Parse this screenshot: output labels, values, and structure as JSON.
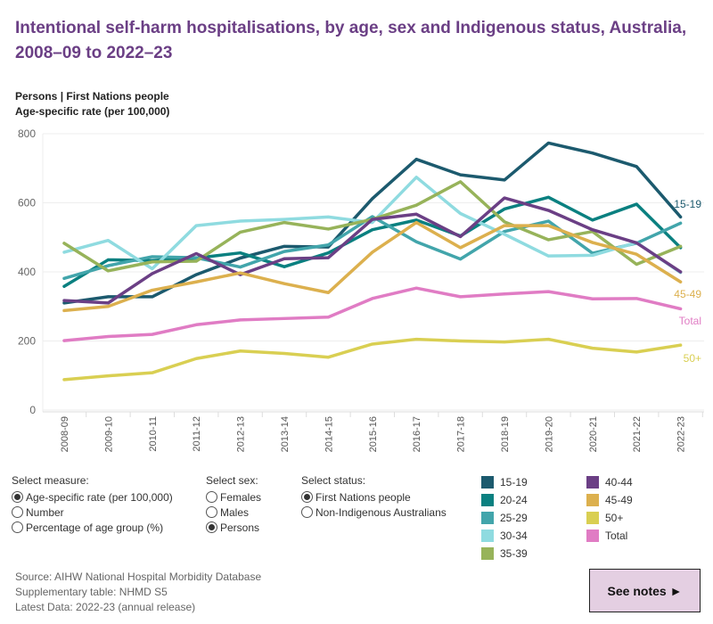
{
  "title": "Intentional self-harm hospitalisations, by age, sex and Indigenous status, Australia, 2008–09 to 2022–23",
  "subtitle1": "Persons | First Nations people",
  "subtitle2": "Age-specific rate (per 100,000)",
  "chart_data": {
    "type": "line",
    "title": "",
    "xlabel": "",
    "ylabel": "Age-specific rate (per 100,000)",
    "ylim": [
      0,
      800
    ],
    "yticks": [
      "0",
      "200",
      "400",
      "600",
      "800"
    ],
    "grid": true,
    "legend": "bottom",
    "categories": [
      "2008-09",
      "2009-10",
      "2010-11",
      "2011-12",
      "2012-13",
      "2013-14",
      "2014-15",
      "2015-16",
      "2016-17",
      "2017-18",
      "2018-19",
      "2019-20",
      "2020-21",
      "2021-22",
      "2022-23"
    ],
    "series": [
      {
        "name": "15-19",
        "color": "#1c5a6e",
        "end_label": "15-19",
        "values": [
          310,
          328,
          328,
          392,
          440,
          474,
          472,
          612,
          726,
          681,
          666,
          773,
          744,
          705,
          559
        ]
      },
      {
        "name": "20-24",
        "color": "#0a8080",
        "values": [
          358,
          435,
          433,
          440,
          455,
          415,
          455,
          522,
          550,
          504,
          582,
          616,
          550,
          596,
          470
        ]
      },
      {
        "name": "25-29",
        "color": "#42a5ab",
        "values": [
          381,
          418,
          444,
          441,
          414,
          459,
          478,
          560,
          487,
          437,
          517,
          547,
          454,
          483,
          541
        ]
      },
      {
        "name": "30-34",
        "color": "#8fdbe0",
        "values": [
          457,
          491,
          409,
          534,
          547,
          552,
          559,
          543,
          674,
          569,
          509,
          446,
          448,
          485,
          398
        ]
      },
      {
        "name": "35-39",
        "color": "#97b35a",
        "values": [
          483,
          403,
          429,
          431,
          515,
          543,
          524,
          552,
          593,
          661,
          545,
          493,
          517,
          422,
          474
        ]
      },
      {
        "name": "40-44",
        "color": "#6b3f85",
        "values": [
          317,
          310,
          395,
          453,
          392,
          438,
          441,
          552,
          567,
          502,
          614,
          578,
          522,
          484,
          400
        ]
      },
      {
        "name": "45-49",
        "color": "#dcb04e",
        "end_label": "45-49",
        "values": [
          288,
          300,
          347,
          371,
          397,
          366,
          340,
          457,
          543,
          470,
          534,
          534,
          485,
          451,
          371
        ]
      },
      {
        "name": "50+",
        "color": "#d9cf52",
        "end_label": "50+",
        "values": [
          88,
          99,
          108,
          149,
          171,
          164,
          153,
          191,
          205,
          200,
          197,
          205,
          179,
          168,
          188
        ]
      },
      {
        "name": "Total",
        "color": "#e07cc4",
        "end_label": "Total",
        "values": [
          201,
          213,
          219,
          247,
          261,
          265,
          269,
          323,
          353,
          328,
          336,
          343,
          322,
          323,
          293
        ]
      }
    ]
  },
  "controls": {
    "measure": {
      "label": "Select measure:",
      "options": [
        "Age-specific rate (per 100,000)",
        "Number",
        "Percentage of age group (%)"
      ],
      "selected": 0
    },
    "sex": {
      "label": "Select sex:",
      "options": [
        "Females",
        "Males",
        "Persons"
      ],
      "selected": 2
    },
    "status": {
      "label": "Select status:",
      "options": [
        "First Nations people",
        "Non-Indigenous Australians"
      ],
      "selected": 0
    }
  },
  "footer": {
    "source": "Source: AIHW National Hospital Morbidity Database",
    "table": "Supplementary table: NHMD S5",
    "latest": "Latest Data: 2022-23 (annual release)"
  },
  "notes_button": "See notes ►"
}
